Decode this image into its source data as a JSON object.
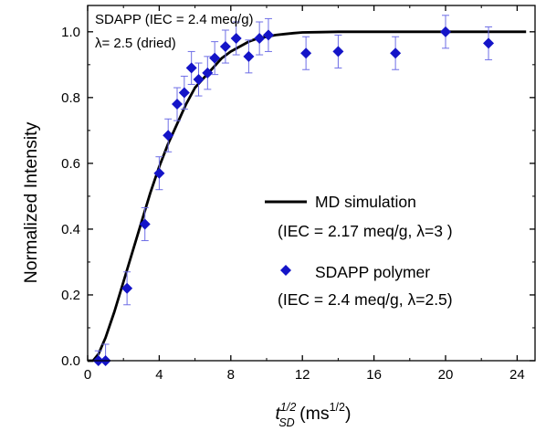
{
  "chart_data": {
    "type": "scatter",
    "xlabel": "t_SD^1/2 (ms^1/2)",
    "xlabel_parts": {
      "t": "t",
      "sup": "1/2",
      "sub": "SD",
      "units_open": " (ms",
      "units_sup": "1/2",
      "units_close": ")"
    },
    "ylabel": "Normalized Intensity",
    "xlim": [
      0,
      25
    ],
    "ylim": [
      0,
      1.08
    ],
    "xticks": [
      0,
      4,
      8,
      12,
      16,
      20,
      24
    ],
    "yticks": [
      0.0,
      0.2,
      0.4,
      0.6,
      0.8,
      1.0
    ],
    "xtick_labels": [
      "0",
      "4",
      "8",
      "12",
      "16",
      "20",
      "24"
    ],
    "ytick_labels": [
      "0.0",
      "0.2",
      "0.4",
      "0.6",
      "0.8",
      "1.0"
    ],
    "annotations": [
      "SDAPP (IEC = 2.4 meq/g)",
      "λ= 2.5 (dried)"
    ],
    "legend_placement": "center-right",
    "grid": false,
    "series": [
      {
        "name": "MD simulation",
        "legend_line2": "(IEC = 2.17 meq/g, λ=3 )",
        "kind": "line",
        "color": "#000000",
        "x": [
          0.0,
          0.3,
          0.6,
          1.0,
          1.5,
          2.0,
          2.5,
          3.0,
          3.5,
          4.0,
          4.5,
          5.0,
          5.5,
          6.0,
          6.5,
          7.0,
          7.5,
          8.0,
          8.5,
          9.0,
          9.5,
          10.0,
          10.5,
          11.0,
          11.5,
          12.0,
          13.0,
          14.0,
          15.0,
          16.0,
          18.0,
          20.0,
          22.0,
          24.5
        ],
        "y": [
          0.0,
          0.0,
          0.02,
          0.07,
          0.15,
          0.24,
          0.33,
          0.42,
          0.51,
          0.59,
          0.66,
          0.72,
          0.78,
          0.83,
          0.86,
          0.89,
          0.92,
          0.94,
          0.955,
          0.97,
          0.98,
          0.985,
          0.99,
          0.993,
          0.996,
          0.998,
          0.999,
          1.0,
          1.0,
          1.0,
          1.0,
          1.0,
          1.0,
          1.0
        ]
      },
      {
        "name": "SDAPP polymer",
        "legend_line2": "(IEC = 2.4 meq/g, λ=2.5)",
        "kind": "scatter",
        "marker": "diamond",
        "color": "#1414c8",
        "errorbar_color": "#6e6ee6",
        "points": [
          {
            "x": 0.6,
            "y": 0.0,
            "err": 0.03
          },
          {
            "x": 1.0,
            "y": 0.0,
            "err": 0.05
          },
          {
            "x": 2.2,
            "y": 0.22,
            "err": 0.05
          },
          {
            "x": 3.2,
            "y": 0.415,
            "err": 0.05
          },
          {
            "x": 4.0,
            "y": 0.57,
            "err": 0.05
          },
          {
            "x": 4.5,
            "y": 0.685,
            "err": 0.05
          },
          {
            "x": 5.0,
            "y": 0.78,
            "err": 0.05
          },
          {
            "x": 5.4,
            "y": 0.815,
            "err": 0.05
          },
          {
            "x": 5.8,
            "y": 0.89,
            "err": 0.05
          },
          {
            "x": 6.2,
            "y": 0.855,
            "err": 0.05
          },
          {
            "x": 6.7,
            "y": 0.875,
            "err": 0.05
          },
          {
            "x": 7.1,
            "y": 0.92,
            "err": 0.05
          },
          {
            "x": 7.7,
            "y": 0.955,
            "err": 0.05
          },
          {
            "x": 8.3,
            "y": 0.98,
            "err": 0.05
          },
          {
            "x": 9.0,
            "y": 0.925,
            "err": 0.05
          },
          {
            "x": 9.6,
            "y": 0.98,
            "err": 0.05
          },
          {
            "x": 10.1,
            "y": 0.99,
            "err": 0.05
          },
          {
            "x": 12.2,
            "y": 0.935,
            "err": 0.05
          },
          {
            "x": 14.0,
            "y": 0.94,
            "err": 0.05
          },
          {
            "x": 17.2,
            "y": 0.935,
            "err": 0.05
          },
          {
            "x": 20.0,
            "y": 1.0,
            "err": 0.05
          },
          {
            "x": 22.4,
            "y": 0.965,
            "err": 0.05
          }
        ]
      }
    ]
  }
}
